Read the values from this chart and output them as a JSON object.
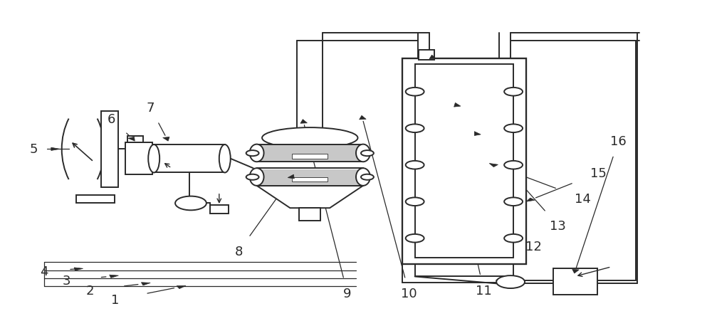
{
  "bg_color": "#ffffff",
  "line_color": "#2a2a2a",
  "lw": 1.4,
  "thin_lw": 0.7,
  "label_fontsize": 13,
  "fig_w": 10.0,
  "fig_h": 4.52,
  "dpi": 100
}
